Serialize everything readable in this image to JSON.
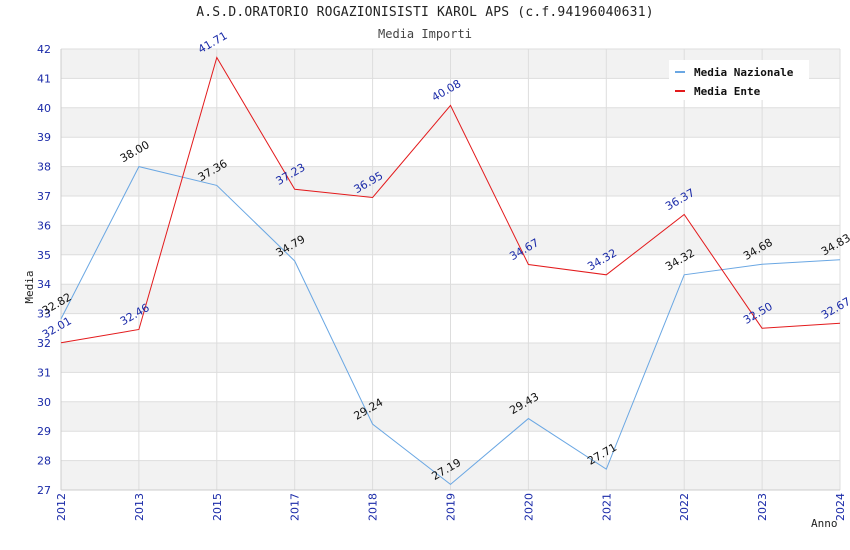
{
  "chart_data": {
    "type": "line",
    "title": "A.S.D.ORATORIO ROGAZIONISISTI KAROL APS (c.f.94196040631)",
    "subtitle": "Media Importi",
    "xlabel": "Anno",
    "ylabel": "Media",
    "categories": [
      "2012",
      "2013",
      "2015",
      "2017",
      "2018",
      "2019",
      "2020",
      "2021",
      "2022",
      "2023",
      "2024"
    ],
    "ylim": [
      27,
      42
    ],
    "yticks": [
      27,
      28,
      29,
      30,
      31,
      32,
      33,
      34,
      35,
      36,
      37,
      38,
      39,
      40,
      41,
      42
    ],
    "grid": true,
    "legend_position": "top-right",
    "series": [
      {
        "name": "Media Nazionale",
        "color": "#6aa7e3",
        "label_color": "#111111",
        "values": [
          32.82,
          38.0,
          37.36,
          34.79,
          29.24,
          27.19,
          29.43,
          27.71,
          34.32,
          34.68,
          34.83
        ],
        "labels": [
          "32.82",
          "38.00",
          "37.36",
          "34.79",
          "29.24",
          "27.19",
          "29.43",
          "27.71",
          "34.32",
          "34.68",
          "34.83"
        ]
      },
      {
        "name": "Media Ente",
        "color": "#e31a1c",
        "label_color": "#1a2aa8",
        "values": [
          32.01,
          32.46,
          41.71,
          37.23,
          36.95,
          40.08,
          34.67,
          34.32,
          36.37,
          32.5,
          32.67
        ],
        "labels": [
          "32.01",
          "32.46",
          "41.71",
          "37.23",
          "36.95",
          "40.08",
          "34.67",
          "34.32",
          "36.37",
          "32.50",
          "32.67"
        ]
      }
    ],
    "colors": {
      "tick_text": "#1a2aa8",
      "band_light": "#ffffff",
      "band_dark": "#f2f2f2",
      "grid": "#dddddd"
    }
  }
}
